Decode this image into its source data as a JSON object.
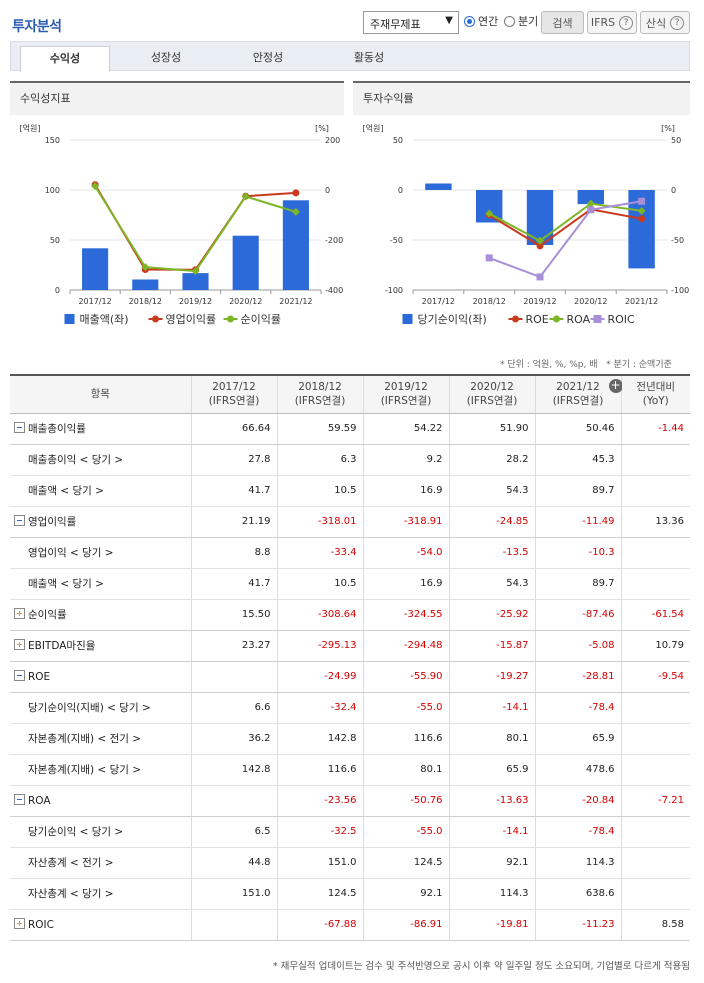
{
  "header": {
    "title": "투자분석",
    "select_value": "주재무제표",
    "radio_annual": "연간",
    "radio_quarter": "분기",
    "search_label": "검색",
    "ifrs_label": "IFRS",
    "formula_label": "산식",
    "help_glyph": "?"
  },
  "tabs": [
    {
      "label": "수익성"
    },
    {
      "label": "성장성"
    },
    {
      "label": "안정성"
    },
    {
      "label": "활동성"
    }
  ],
  "chart_data": [
    {
      "type": "bar",
      "title": "수익성지표",
      "categories": [
        "2017/12",
        "2018/12",
        "2019/12",
        "2020/12",
        "2021/12"
      ],
      "left_axis": {
        "unit": "[억원]",
        "ticks": [
          "150",
          "100",
          "50",
          "0"
        ],
        "ylim": [
          0,
          150
        ]
      },
      "right_axis": {
        "unit": "[%]",
        "ticks": [
          "200",
          "0",
          "-200",
          "-400"
        ],
        "ylim": [
          -400,
          200
        ]
      },
      "series": [
        {
          "name": "매출액(좌)",
          "kind": "bar",
          "axis": "left",
          "color": "#2b6ad8",
          "values": [
            41.7,
            10.5,
            16.9,
            54.3,
            89.7
          ]
        },
        {
          "name": "영업이익률",
          "kind": "line",
          "axis": "right",
          "color": "#c9391d",
          "values": [
            21.19,
            -318.01,
            -318.91,
            -24.85,
            -11.49
          ]
        },
        {
          "name": "순이익률",
          "kind": "line",
          "axis": "right",
          "color": "#7cb526",
          "values": [
            15.5,
            -308.64,
            -324.55,
            -25.92,
            -87.46
          ]
        }
      ]
    },
    {
      "type": "bar",
      "title": "투자수익률",
      "categories": [
        "2017/12",
        "2018/12",
        "2019/12",
        "2020/12",
        "2021/12"
      ],
      "left_axis": {
        "unit": "[억원]",
        "ticks": [
          "50",
          "0",
          "-50",
          "-100"
        ],
        "ylim": [
          -100,
          50
        ]
      },
      "right_axis": {
        "unit": "[%]",
        "ticks": [
          "50",
          "0",
          "-50",
          "-100"
        ],
        "ylim": [
          -100,
          50
        ]
      },
      "series": [
        {
          "name": "당기순이익(좌)",
          "kind": "bar",
          "axis": "left",
          "color": "#2b6ad8",
          "values": [
            6.5,
            -32.5,
            -55.0,
            -14.1,
            -78.4
          ]
        },
        {
          "name": "ROE",
          "kind": "line",
          "axis": "right",
          "color": "#c9391d",
          "values": [
            null,
            -24.99,
            -55.9,
            -19.27,
            -28.81
          ]
        },
        {
          "name": "ROA",
          "kind": "line",
          "axis": "right",
          "color": "#7cb526",
          "values": [
            null,
            -23.56,
            -50.76,
            -13.63,
            -20.84
          ]
        },
        {
          "name": "ROIC",
          "kind": "line",
          "axis": "right",
          "color": "#a98fd8",
          "values": [
            null,
            -67.88,
            -86.91,
            -19.81,
            -11.23
          ]
        }
      ]
    }
  ],
  "notes": {
    "unit": "* 단위 : 억원, %, %p, 배",
    "quarter": "* 분기 : 순액기준"
  },
  "table": {
    "header_label": "항목",
    "columns": [
      {
        "period": "2017/12",
        "basis": "(IFRS연결)"
      },
      {
        "period": "2018/12",
        "basis": "(IFRS연결)"
      },
      {
        "period": "2019/12",
        "basis": "(IFRS연결)"
      },
      {
        "period": "2020/12",
        "basis": "(IFRS연결)"
      },
      {
        "period": "2021/12",
        "basis": "(IFRS연결)"
      },
      {
        "period": "전년대비",
        "basis": "(YoY)"
      }
    ],
    "rows": [
      {
        "label": "매출총이익률",
        "icon": "minus",
        "sub": false,
        "values": [
          "66.64",
          "59.59",
          "54.22",
          "51.90",
          "50.46",
          "-1.44"
        ]
      },
      {
        "label": "매출총이익 < 당기 >",
        "icon": "",
        "sub": true,
        "values": [
          "27.8",
          "6.3",
          "9.2",
          "28.2",
          "45.3",
          ""
        ]
      },
      {
        "label": "매출액 < 당기 >",
        "icon": "",
        "sub": true,
        "values": [
          "41.7",
          "10.5",
          "16.9",
          "54.3",
          "89.7",
          ""
        ]
      },
      {
        "label": "영업이익률",
        "icon": "minus",
        "sub": false,
        "values": [
          "21.19",
          "-318.01",
          "-318.91",
          "-24.85",
          "-11.49",
          "13.36"
        ]
      },
      {
        "label": "영업이익 < 당기 >",
        "icon": "",
        "sub": true,
        "values": [
          "8.8",
          "-33.4",
          "-54.0",
          "-13.5",
          "-10.3",
          ""
        ]
      },
      {
        "label": "매출액 < 당기 >",
        "icon": "",
        "sub": true,
        "values": [
          "41.7",
          "10.5",
          "16.9",
          "54.3",
          "89.7",
          ""
        ]
      },
      {
        "label": "순이익률",
        "icon": "plus",
        "sub": false,
        "values": [
          "15.50",
          "-308.64",
          "-324.55",
          "-25.92",
          "-87.46",
          "-61.54"
        ]
      },
      {
        "label": "EBITDA마진율",
        "icon": "plus",
        "sub": false,
        "values": [
          "23.27",
          "-295.13",
          "-294.48",
          "-15.87",
          "-5.08",
          "10.79"
        ]
      },
      {
        "label": "ROE",
        "icon": "minus",
        "sub": false,
        "values": [
          "",
          "-24.99",
          "-55.90",
          "-19.27",
          "-28.81",
          "-9.54"
        ]
      },
      {
        "label": "당기순이익(지배) < 당기 >",
        "icon": "",
        "sub": true,
        "values": [
          "6.6",
          "-32.4",
          "-55.0",
          "-14.1",
          "-78.4",
          ""
        ]
      },
      {
        "label": "자본총계(지배) < 전기 >",
        "icon": "",
        "sub": true,
        "values": [
          "36.2",
          "142.8",
          "116.6",
          "80.1",
          "65.9",
          ""
        ]
      },
      {
        "label": "자본총계(지배) < 당기 >",
        "icon": "",
        "sub": true,
        "values": [
          "142.8",
          "116.6",
          "80.1",
          "65.9",
          "478.6",
          ""
        ]
      },
      {
        "label": "ROA",
        "icon": "minus",
        "sub": false,
        "values": [
          "",
          "-23.56",
          "-50.76",
          "-13.63",
          "-20.84",
          "-7.21"
        ]
      },
      {
        "label": "당기순이익 < 당기 >",
        "icon": "",
        "sub": true,
        "values": [
          "6.5",
          "-32.5",
          "-55.0",
          "-14.1",
          "-78.4",
          ""
        ]
      },
      {
        "label": "자산총계 < 전기 >",
        "icon": "",
        "sub": true,
        "values": [
          "44.8",
          "151.0",
          "124.5",
          "92.1",
          "114.3",
          ""
        ]
      },
      {
        "label": "자산총계 < 당기 >",
        "icon": "",
        "sub": true,
        "values": [
          "151.0",
          "124.5",
          "92.1",
          "114.3",
          "638.6",
          ""
        ]
      },
      {
        "label": "ROIC",
        "icon": "plus",
        "sub": false,
        "values": [
          "",
          "-67.88",
          "-86.91",
          "-19.81",
          "-11.23",
          "8.58"
        ]
      }
    ]
  },
  "footnote": "* 재무실적 업데이트는 검수 및 주석반영으로 공시 이후 약 일주일 정도 소요되며, 기업별로 다르게 적용됨"
}
